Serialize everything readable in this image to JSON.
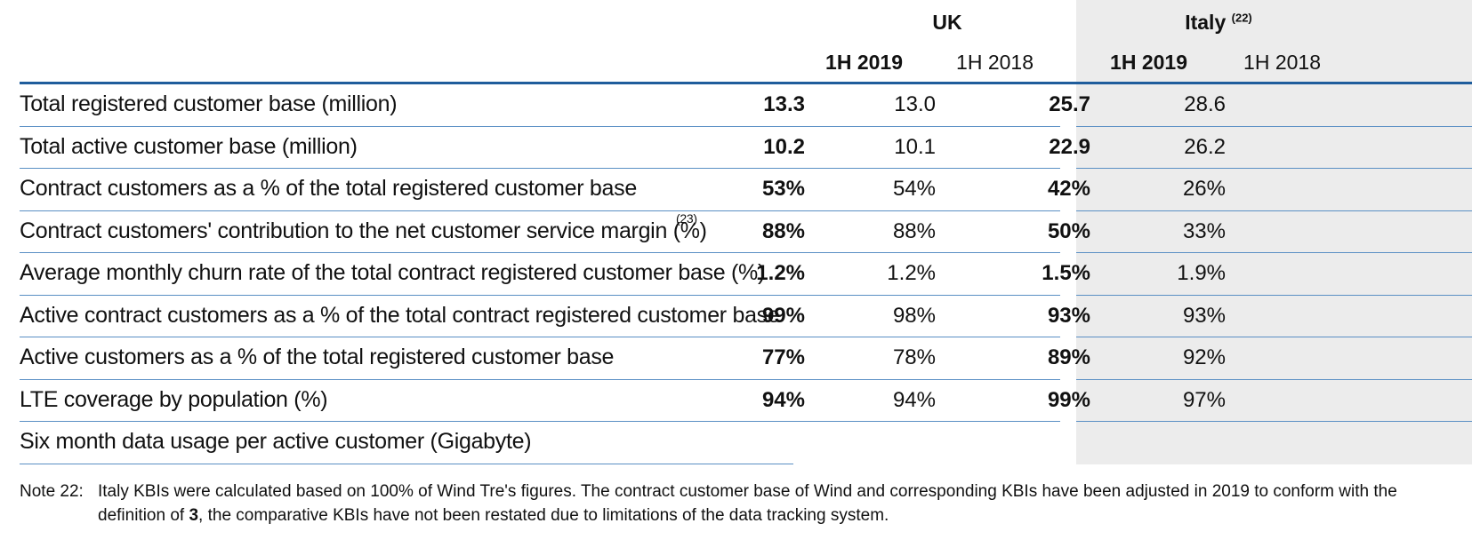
{
  "columns": {
    "groups": [
      {
        "name": "UK",
        "footnote": ""
      },
      {
        "name": "Italy",
        "footnote": "(22)"
      }
    ],
    "periods": [
      "1H 2019",
      "1H 2018",
      "1H 2019",
      "1H 2018"
    ]
  },
  "rows": [
    {
      "label": "Total registered customer base (million)",
      "footnote": "",
      "uk_2019": "13.3",
      "uk_2018": "13.0",
      "it_2019": "25.7",
      "it_2018": "28.6"
    },
    {
      "label": "Total active customer base (million)",
      "footnote": "",
      "uk_2019": "10.2",
      "uk_2018": "10.1",
      "it_2019": "22.9",
      "it_2018": "26.2"
    },
    {
      "label": "Contract customers as a % of the total registered customer base",
      "footnote": "",
      "uk_2019": "53%",
      "uk_2018": "54%",
      "it_2019": "42%",
      "it_2018": "26%"
    },
    {
      "label": "Contract customers' contribution to the net customer service margin (%)",
      "footnote": "(23)",
      "uk_2019": "88%",
      "uk_2018": "88%",
      "it_2019": "50%",
      "it_2018": "33%"
    },
    {
      "label": "Average monthly churn rate of the total contract registered customer base (%)",
      "footnote": "",
      "uk_2019": "1.2%",
      "uk_2018": "1.2%",
      "it_2019": "1.5%",
      "it_2018": "1.9%"
    },
    {
      "label": "Active contract customers as a % of the total contract registered customer base",
      "footnote": "",
      "uk_2019": "99%",
      "uk_2018": "98%",
      "it_2019": "93%",
      "it_2018": "93%"
    },
    {
      "label": "Active customers as a % of the total registered customer base",
      "footnote": "",
      "uk_2019": "77%",
      "uk_2018": "78%",
      "it_2019": "89%",
      "it_2018": "92%"
    },
    {
      "label": "LTE coverage by population (%)",
      "footnote": "",
      "uk_2019": "94%",
      "uk_2018": "94%",
      "it_2019": "99%",
      "it_2018": "97%"
    },
    {
      "label": "Six month data usage per active customer (Gigabyte)",
      "footnote": "",
      "uk_2019": "",
      "uk_2018": "",
      "it_2019": "",
      "it_2018": ""
    }
  ],
  "note": {
    "label": "Note 22:",
    "text_before": "Italy KBIs were calculated based on 100% of Wind Tre's figures.  The contract customer base of Wind and corresponding KBIs have been adjusted in 2019 to conform with the definition of ",
    "bold": "3",
    "text_after": ", the comparative KBIs have not been restated due to limitations of the data tracking system."
  },
  "colors": {
    "rule": "#1f5d9c",
    "row_rule": "#5a8fc4",
    "italy_bg": "#ececec"
  }
}
